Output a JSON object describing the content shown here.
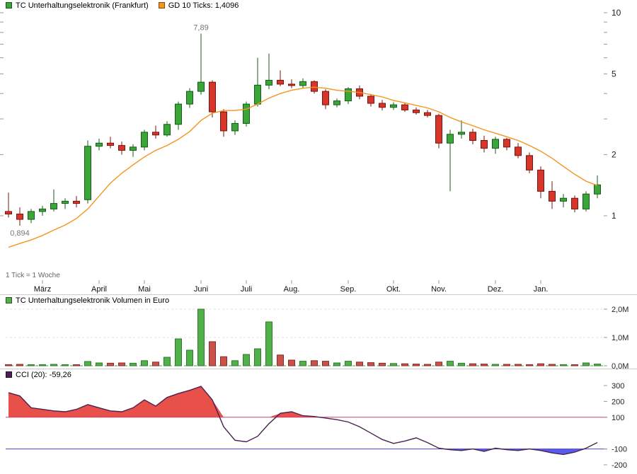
{
  "chart_data": [
    {
      "type": "candlestick",
      "title": "TC Unterhaltungselektronik (Frankfurt)",
      "tick_note": "1 Tick = 1 Woche",
      "y_scale": "log",
      "y_ticks": [
        10,
        5,
        2,
        1
      ],
      "y_minor_ticks": [
        3,
        4,
        6,
        7,
        8,
        9
      ],
      "ylim": [
        0.49,
        10.9
      ],
      "months": [
        {
          "label": "März",
          "index": 3
        },
        {
          "label": "April",
          "index": 8
        },
        {
          "label": "Mai",
          "index": 12
        },
        {
          "label": "Juni",
          "index": 17
        },
        {
          "label": "Juli",
          "index": 21
        },
        {
          "label": "Aug.",
          "index": 25
        },
        {
          "label": "Sep.",
          "index": 30
        },
        {
          "label": "Okt.",
          "index": 34
        },
        {
          "label": "Nov.",
          "index": 38
        },
        {
          "label": "Dez.",
          "index": 43
        },
        {
          "label": "Jan.",
          "index": 47
        }
      ],
      "annotations": [
        {
          "text": "7,89",
          "index": 17,
          "value": 7.89,
          "position": "above"
        },
        {
          "text": "0,894",
          "index": 1,
          "value": 0.894,
          "position": "below"
        }
      ],
      "gd10": {
        "label": "GD 10 Ticks: 1,4096",
        "current": 1.4096,
        "values": [
          0.7,
          0.73,
          0.76,
          0.8,
          0.85,
          0.9,
          0.97,
          1.08,
          1.25,
          1.45,
          1.62,
          1.78,
          1.95,
          2.1,
          2.22,
          2.38,
          2.6,
          2.95,
          3.2,
          3.3,
          3.3,
          3.35,
          3.55,
          3.8,
          4.0,
          4.15,
          4.25,
          4.3,
          4.25,
          4.15,
          4.1,
          4.05,
          3.95,
          3.85,
          3.7,
          3.6,
          3.5,
          3.4,
          3.25,
          3.05,
          2.9,
          2.78,
          2.65,
          2.55,
          2.45,
          2.35,
          2.22,
          2.08,
          1.92,
          1.75,
          1.6,
          1.48,
          1.41
        ]
      },
      "candles_ohlc": [
        [
          1.05,
          1.3,
          0.98,
          1.02
        ],
        [
          1.02,
          1.1,
          0.894,
          0.96
        ],
        [
          0.96,
          1.08,
          0.92,
          1.05
        ],
        [
          1.05,
          1.12,
          1.0,
          1.08
        ],
        [
          1.08,
          1.35,
          1.05,
          1.15
        ],
        [
          1.15,
          1.22,
          1.08,
          1.18
        ],
        [
          1.18,
          1.25,
          1.1,
          1.15
        ],
        [
          1.2,
          2.35,
          1.15,
          2.2
        ],
        [
          2.2,
          2.4,
          2.1,
          2.28
        ],
        [
          2.28,
          2.45,
          2.15,
          2.22
        ],
        [
          2.22,
          2.32,
          2.0,
          2.1
        ],
        [
          2.1,
          2.25,
          1.95,
          2.18
        ],
        [
          2.18,
          2.65,
          2.1,
          2.58
        ],
        [
          2.58,
          2.78,
          2.4,
          2.5
        ],
        [
          2.5,
          2.92,
          2.45,
          2.82
        ],
        [
          2.82,
          3.65,
          2.65,
          3.55
        ],
        [
          3.55,
          4.25,
          3.4,
          4.1
        ],
        [
          4.1,
          7.89,
          3.95,
          4.55
        ],
        [
          4.55,
          4.65,
          3.05,
          3.25
        ],
        [
          3.25,
          3.35,
          2.45,
          2.62
        ],
        [
          2.62,
          2.95,
          2.5,
          2.85
        ],
        [
          2.85,
          3.65,
          2.75,
          3.55
        ],
        [
          3.55,
          6.0,
          3.45,
          4.4
        ],
        [
          4.4,
          6.3,
          4.2,
          4.65
        ],
        [
          4.65,
          5.2,
          4.35,
          4.45
        ],
        [
          4.45,
          4.7,
          4.25,
          4.38
        ],
        [
          4.38,
          4.75,
          4.25,
          4.58
        ],
        [
          4.58,
          4.65,
          4.0,
          4.1
        ],
        [
          4.1,
          4.2,
          3.35,
          3.52
        ],
        [
          3.52,
          3.78,
          3.42,
          3.68
        ],
        [
          3.68,
          4.3,
          3.55,
          4.22
        ],
        [
          4.22,
          4.38,
          3.75,
          3.88
        ],
        [
          3.88,
          3.98,
          3.45,
          3.58
        ],
        [
          3.58,
          3.72,
          3.3,
          3.42
        ],
        [
          3.42,
          3.62,
          3.32,
          3.52
        ],
        [
          3.52,
          3.58,
          3.25,
          3.32
        ],
        [
          3.32,
          3.42,
          3.15,
          3.22
        ],
        [
          3.22,
          3.32,
          3.05,
          3.12
        ],
        [
          3.12,
          3.18,
          2.15,
          2.28
        ],
        [
          2.28,
          2.65,
          1.32,
          2.52
        ],
        [
          2.52,
          2.95,
          2.4,
          2.58
        ],
        [
          2.58,
          2.68,
          2.25,
          2.35
        ],
        [
          2.35,
          2.48,
          2.05,
          2.15
        ],
        [
          2.15,
          2.45,
          2.02,
          2.38
        ],
        [
          2.38,
          2.42,
          2.1,
          2.18
        ],
        [
          2.18,
          2.28,
          1.92,
          1.98
        ],
        [
          1.98,
          2.05,
          1.62,
          1.68
        ],
        [
          1.68,
          1.75,
          1.22,
          1.32
        ],
        [
          1.32,
          1.48,
          1.08,
          1.18
        ],
        [
          1.18,
          1.28,
          1.1,
          1.22
        ],
        [
          1.22,
          1.26,
          1.04,
          1.08
        ],
        [
          1.08,
          1.32,
          1.05,
          1.28
        ],
        [
          1.28,
          1.58,
          1.22,
          1.42
        ]
      ],
      "colors": {
        "up": "#3aa63a",
        "up_border": "#135c13",
        "down": "#d6352b",
        "down_border": "#7c130b",
        "ma": "#f5941e"
      }
    },
    {
      "type": "bar",
      "title": "TC Unterhaltungselektronik Volumen in Euro",
      "unit": "EUR",
      "y_ticks": [
        {
          "value": 2.0,
          "label": "2,0M"
        },
        {
          "value": 1.0,
          "label": "1,0M"
        },
        {
          "value": 0.0,
          "label": "0,0M"
        }
      ],
      "values_millions": [
        0.04,
        0.05,
        0.03,
        0.04,
        0.05,
        0.03,
        0.03,
        0.15,
        0.1,
        0.09,
        0.1,
        0.09,
        0.18,
        0.13,
        0.3,
        0.95,
        0.55,
        2.0,
        0.85,
        0.32,
        0.18,
        0.4,
        0.6,
        1.55,
        0.38,
        0.2,
        0.16,
        0.18,
        0.16,
        0.1,
        0.16,
        0.13,
        0.11,
        0.09,
        0.08,
        0.07,
        0.06,
        0.05,
        0.13,
        0.16,
        0.09,
        0.07,
        0.06,
        0.05,
        0.05,
        0.05,
        0.04,
        0.07,
        0.05,
        0.04,
        0.03,
        0.1,
        0.06
      ],
      "colors": {
        "up": "#52b04a",
        "up_border": "#2c7d26",
        "down": "#c9534a",
        "down_border": "#8c2b24",
        "baseline": "#3aa63a"
      }
    },
    {
      "type": "line",
      "title": "CCI (20)",
      "label": "CCI (20): -59,26",
      "current": -59.26,
      "upper_band": 100,
      "lower_band": -100,
      "y_ticks": [
        300,
        200,
        100,
        -100,
        -200
      ],
      "ylim": [
        -200,
        300
      ],
      "values": [
        255,
        235,
        160,
        150,
        140,
        135,
        150,
        180,
        160,
        140,
        135,
        160,
        210,
        170,
        225,
        250,
        270,
        295,
        210,
        40,
        -45,
        -55,
        -20,
        60,
        125,
        135,
        110,
        105,
        95,
        85,
        70,
        40,
        0,
        -40,
        -65,
        -50,
        -30,
        -60,
        -95,
        -105,
        -110,
        -100,
        -115,
        -95,
        -105,
        -110,
        -100,
        -110,
        -125,
        -135,
        -120,
        -95,
        -59.26
      ],
      "colors": {
        "line": "#4a2152",
        "above_fill": "#e8504a",
        "below_fill": "#5b5bef",
        "upper_band": "#cc4466",
        "lower_band": "#4444bb"
      }
    }
  ]
}
